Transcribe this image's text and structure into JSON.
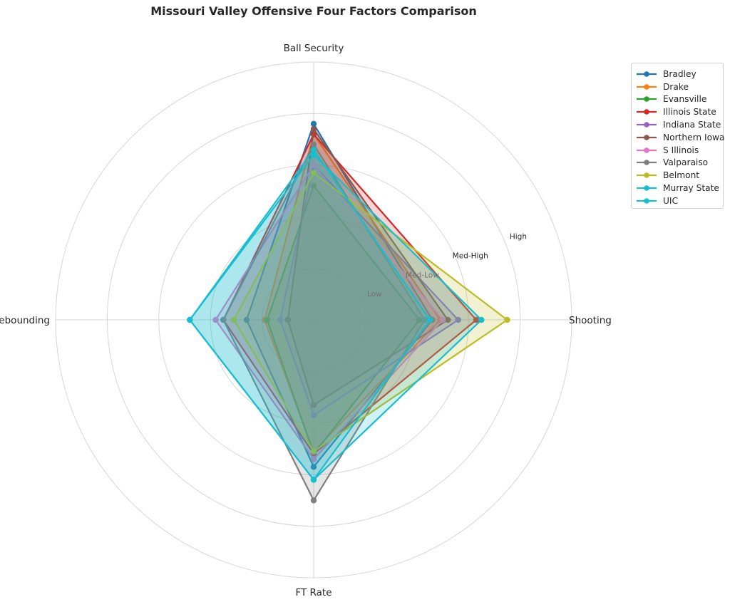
{
  "chart_data": {
    "type": "radar",
    "title": "Missouri Valley Offensive Four Factors Comparison",
    "axes": [
      "Shooting",
      "Ball Security",
      "Off Rebounding",
      "FT Rate"
    ],
    "rlim": [
      0,
      5
    ],
    "ring_labels": [
      "Low",
      "Med-Low",
      "Med-High",
      "High"
    ],
    "ring_values": [
      1,
      2,
      3,
      4
    ],
    "grid": true,
    "legend_position": "top-right",
    "series": [
      {
        "name": "Bradley",
        "color": "#1f77b4",
        "values": [
          2.3,
          3.8,
          1.3,
          2.85
        ]
      },
      {
        "name": "Drake",
        "color": "#ff7f0e",
        "values": [
          2.45,
          3.6,
          0.95,
          2.55
        ]
      },
      {
        "name": "Evansville",
        "color": "#2ca02c",
        "values": [
          2.05,
          2.6,
          0.9,
          2.6
        ]
      },
      {
        "name": "Illinois State",
        "color": "#d62728",
        "values": [
          3.15,
          3.6,
          1.75,
          2.6
        ]
      },
      {
        "name": "Indiana State",
        "color": "#9467bd",
        "values": [
          2.8,
          3.0,
          0.65,
          1.85
        ]
      },
      {
        "name": "Northern Iowa",
        "color": "#8c564b",
        "values": [
          2.6,
          3.7,
          0.5,
          1.65
        ]
      },
      {
        "name": "S Illinois",
        "color": "#e377c2",
        "values": [
          2.5,
          3.0,
          1.9,
          2.7
        ]
      },
      {
        "name": "Valparaiso",
        "color": "#7f7f7f",
        "values": [
          2.15,
          3.4,
          1.75,
          3.5
        ]
      },
      {
        "name": "Belmont",
        "color": "#bcbd22",
        "values": [
          3.75,
          2.85,
          1.55,
          2.55
        ]
      },
      {
        "name": "Murray State",
        "color": "#17becf",
        "values": [
          3.25,
          3.2,
          2.4,
          3.1
        ]
      },
      {
        "name": "UIC",
        "color": "#17becf",
        "values": [
          2.25,
          3.3,
          2.4,
          3.1
        ]
      }
    ]
  }
}
